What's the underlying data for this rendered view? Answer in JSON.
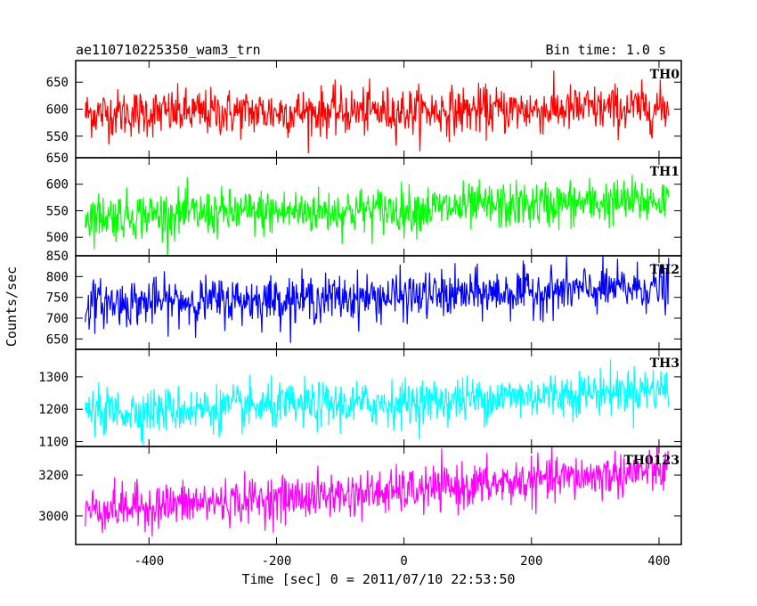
{
  "chart_data": {
    "type": "line",
    "title": "ae110710225350_wam3_trn",
    "subtitle": "Bin time: 1.0 s",
    "xlabel": "Time [sec] 0 = 2011/07/10 22:53:50",
    "ylabel": "Counts/sec",
    "xlim": [
      -515,
      435
    ],
    "xticks": [
      -400,
      -200,
      0,
      200,
      400
    ],
    "x_range": [
      -500,
      415
    ],
    "x_step": 1,
    "grid": false,
    "panels": [
      {
        "name": "TH0",
        "color": "#ff0000",
        "ylim": [
          510,
          690
        ],
        "yticks": [
          550,
          600,
          650
        ],
        "yticks_bottom_label": "650",
        "trend": [
          {
            "x": -500,
            "y": 592
          },
          {
            "x": 0,
            "y": 596
          },
          {
            "x": 415,
            "y": 602
          }
        ],
        "noise_sd": 22
      },
      {
        "name": "TH1",
        "color": "#00ff00",
        "ylim": [
          465,
          650
        ],
        "yticks": [
          500,
          550,
          600
        ],
        "trend": [
          {
            "x": -500,
            "y": 540
          },
          {
            "x": 0,
            "y": 552
          },
          {
            "x": 415,
            "y": 570
          }
        ],
        "noise_sd": 22
      },
      {
        "name": "TH2",
        "color": "#0000ff",
        "ylim": [
          625,
          850
        ],
        "yticks": [
          650,
          700,
          750,
          800,
          850
        ],
        "trend": [
          {
            "x": -500,
            "y": 735
          },
          {
            "x": 0,
            "y": 752
          },
          {
            "x": 415,
            "y": 775
          }
        ],
        "noise_sd": 28
      },
      {
        "name": "TH3",
        "color": "#00ffff",
        "ylim": [
          1085,
          1385
        ],
        "yticks": [
          1100,
          1200,
          1300
        ],
        "trend": [
          {
            "x": -500,
            "y": 1190
          },
          {
            "x": 0,
            "y": 1220
          },
          {
            "x": 415,
            "y": 1265
          }
        ],
        "noise_sd": 35
      },
      {
        "name": "TH0123",
        "color": "#ff00ff",
        "ylim": [
          2860,
          3340
        ],
        "yticks": [
          3000,
          3200
        ],
        "trend": [
          {
            "x": -500,
            "y": 3030
          },
          {
            "x": 0,
            "y": 3120
          },
          {
            "x": 415,
            "y": 3225
          }
        ],
        "noise_sd": 55
      }
    ]
  }
}
